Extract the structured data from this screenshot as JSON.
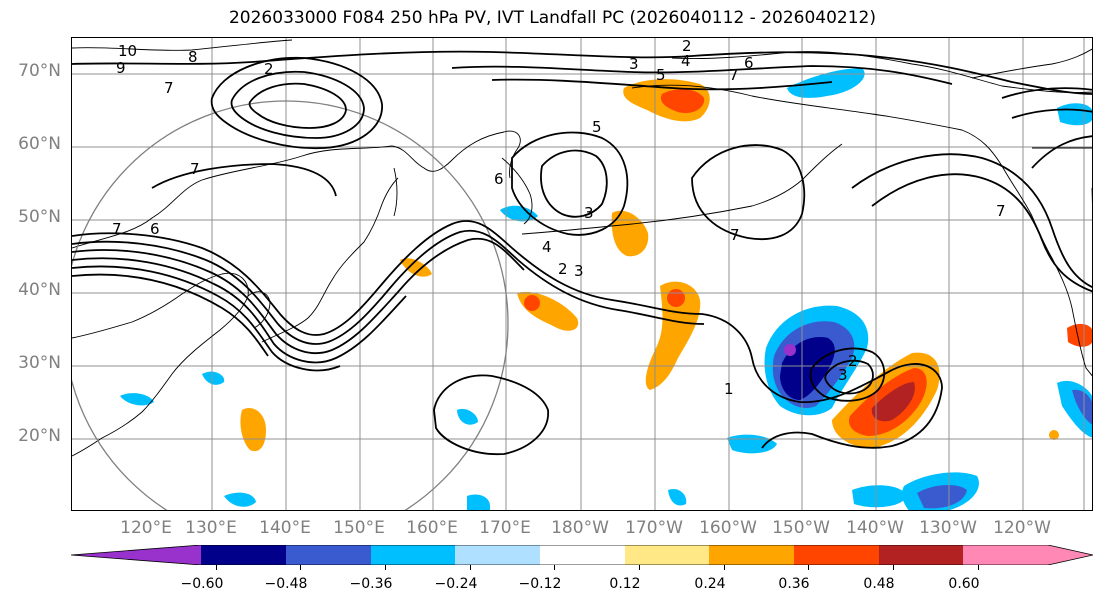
{
  "title": "2026033000 F084 250 hPa PV, IVT Landfall PC (2026040112 - 2026040212)",
  "lat_labels": [
    "70°N",
    "60°N",
    "50°N",
    "40°N",
    "30°N",
    "20°N"
  ],
  "lon_labels": [
    "120°E",
    "130°E",
    "140°E",
    "150°E",
    "160°E",
    "170°E",
    "180°W",
    "170°W",
    "160°W",
    "150°W",
    "140°W",
    "130°W",
    "120°W"
  ],
  "contour_labels": [
    "10",
    "9",
    "8",
    "7",
    "2",
    "7",
    "6",
    "7",
    "3",
    "2",
    "4",
    "5",
    "7",
    "6",
    "5",
    "6",
    "3",
    "4",
    "3",
    "2",
    "7",
    "7",
    "1",
    "2",
    "3"
  ],
  "colorbar": {
    "ticks": [
      "−0.60",
      "−0.48",
      "−0.36",
      "−0.24",
      "−0.12",
      "0.12",
      "0.24",
      "0.36",
      "0.48",
      "0.60"
    ],
    "colors": [
      "#9932cc",
      "#00008b",
      "#3a5bd0",
      "#00bfff",
      "#b0e0ff",
      "#ffffff",
      "#ffe885",
      "#ffa500",
      "#ff4500",
      "#b22222",
      "#ff88b4",
      "#ff88b4"
    ]
  },
  "colors": {
    "grid": "#909090",
    "contour": "#000000",
    "circle": "#808080"
  }
}
